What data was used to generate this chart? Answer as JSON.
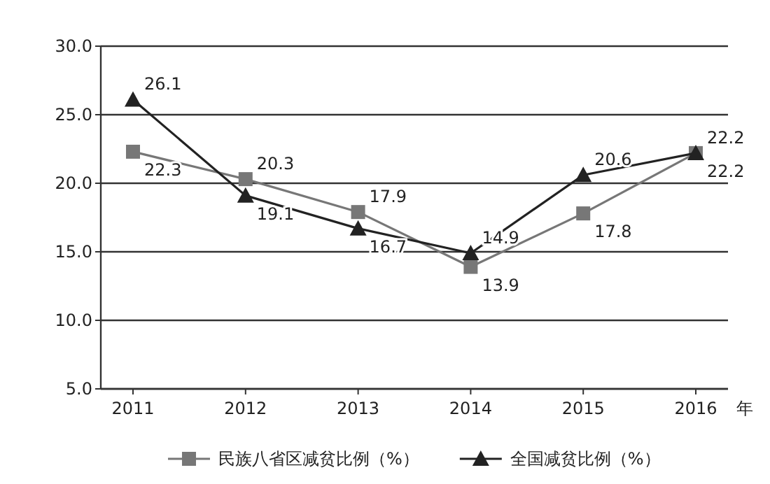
{
  "chart_data": {
    "type": "line",
    "xlabel": "年",
    "categories": [
      "2011",
      "2012",
      "2013",
      "2014",
      "2015",
      "2016"
    ],
    "series": [
      {
        "name": "民族八省区减贫比例（%）",
        "color": "#777777",
        "marker": "square",
        "values": [
          22.3,
          20.3,
          17.9,
          13.9,
          17.8,
          22.2
        ]
      },
      {
        "name": "全国减贫比例（%）",
        "color": "#222222",
        "marker": "triangle",
        "values": [
          26.1,
          19.1,
          16.7,
          14.9,
          20.6,
          22.2
        ]
      }
    ],
    "ylim": [
      5,
      30
    ],
    "yticks": [
      {
        "value": 5,
        "label": "5.0"
      },
      {
        "value": 10,
        "label": "10.0"
      },
      {
        "value": 15,
        "label": "15.0"
      },
      {
        "value": 20,
        "label": "20.0"
      },
      {
        "value": 25,
        "label": "25.0"
      },
      {
        "value": 30,
        "label": "30.0"
      }
    ],
    "grid": "y",
    "legend": "bottom",
    "data_labels": true
  }
}
